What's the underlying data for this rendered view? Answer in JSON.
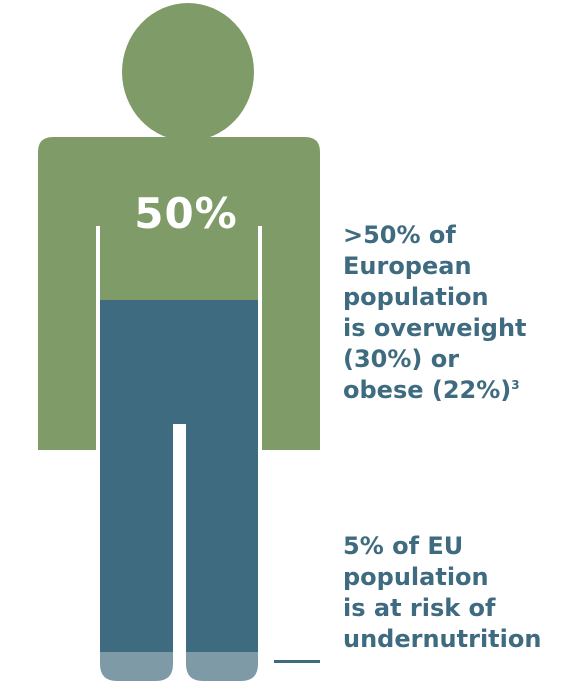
{
  "figure": {
    "percent_label": "50%",
    "colors": {
      "upper_body": "#7f9c68",
      "lower_body": "#3f6b80",
      "feet": "#7e9aa6",
      "text": "#3f6b80"
    }
  },
  "caption_overweight": {
    "text": ">50% of\nEuropean\npopulation\nis overweight\n(30%) or\nobese (22%)",
    "ref": "3"
  },
  "caption_undernutrition": {
    "text": "5% of EU\npopulation\nis at risk of\nundernutrition"
  }
}
